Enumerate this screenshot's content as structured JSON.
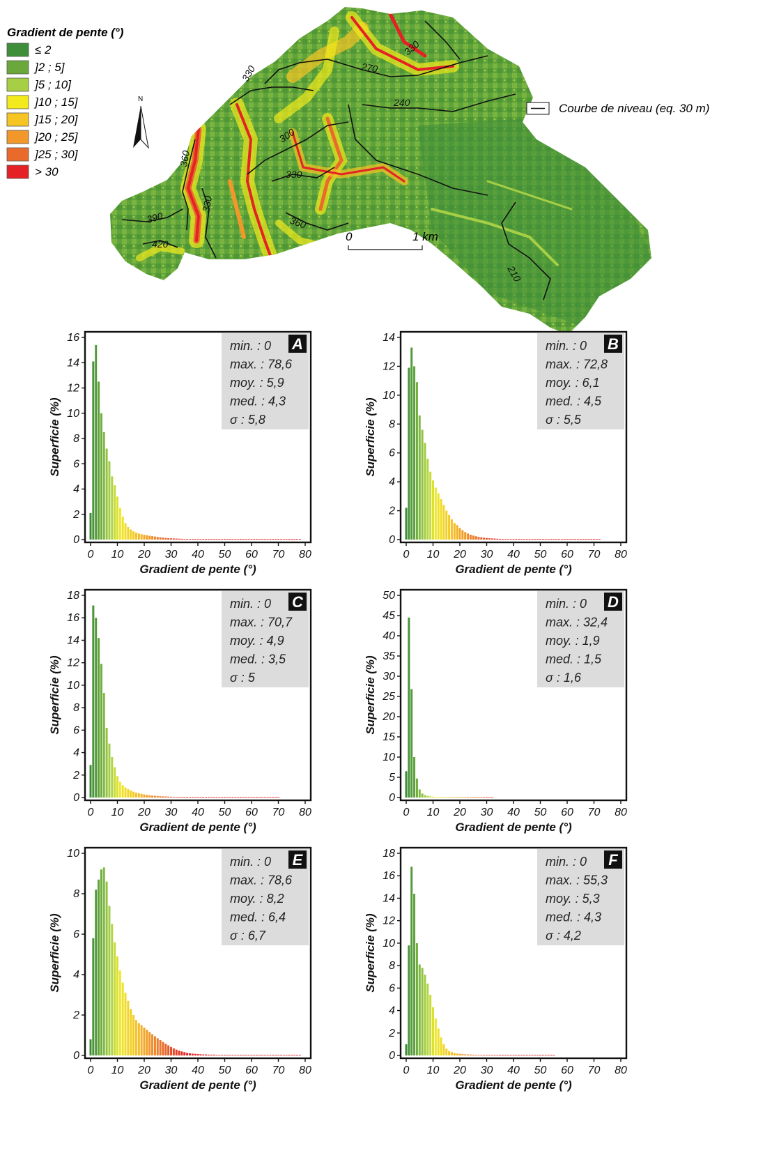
{
  "map": {
    "legend_title": "Gradient de pente (°)",
    "legend_items": [
      {
        "label": "≤ 2",
        "color": "#3f8f3a"
      },
      {
        "label": "]2 ; 5]",
        "color": "#6aa83c"
      },
      {
        "label": "]5 ; 10]",
        "color": "#a7cf45"
      },
      {
        "label": "]10 ; 15]",
        "color": "#f2ea1c"
      },
      {
        "label": "]15 ; 20]",
        "color": "#f6c423"
      },
      {
        "label": "]20 ; 25]",
        "color": "#f2982a"
      },
      {
        "label": "]25 ; 30]",
        "color": "#ea6a2b"
      },
      {
        "label": "> 30",
        "color": "#e42226"
      }
    ],
    "contour_legend": "Courbe de niveau (eq. 30 m)",
    "north_label": "N",
    "scale": {
      "start": "0",
      "end": "1 km"
    },
    "contour_labels": [
      "330",
      "330",
      "270",
      "240",
      "300",
      "360",
      "330",
      "330",
      "390",
      "360",
      "420",
      "210"
    ]
  },
  "chart_data": [
    {
      "type": "bar",
      "id": "A",
      "stats": [
        "min. : 0",
        "max. : 78,6",
        "moy. : 5,9",
        "med. : 4,3",
        "σ : 5,8"
      ],
      "xlabel": "Gradient de pente (°)",
      "ylabel": "Superficie (%)",
      "xlim": [
        0,
        80
      ],
      "ylim": [
        0,
        16
      ],
      "xticks": [
        "0",
        "10",
        "20",
        "30",
        "40",
        "50",
        "60",
        "70",
        "80"
      ],
      "yticks": [
        "0",
        "2",
        "4",
        "6",
        "8",
        "10",
        "12",
        "14",
        "16"
      ],
      "x": [
        0,
        1,
        2,
        3,
        4,
        5,
        6,
        7,
        8,
        9,
        10,
        11,
        12,
        13,
        14,
        15,
        16,
        17,
        18,
        19,
        20,
        21,
        22,
        23,
        24,
        25,
        26,
        27,
        28,
        29,
        30,
        31,
        32,
        33,
        34,
        35,
        36,
        37,
        38,
        39,
        40,
        41,
        42,
        43,
        44,
        45,
        46,
        47,
        48,
        49,
        50,
        51,
        52,
        53,
        54,
        55,
        56,
        57,
        58,
        59,
        60,
        61,
        62,
        63,
        64,
        65,
        66,
        67,
        68,
        69,
        70,
        71,
        72,
        73,
        74,
        75,
        76,
        77,
        78
      ],
      "values": [
        2.1,
        14.1,
        15.4,
        12.5,
        10.0,
        8.5,
        7.2,
        6.2,
        5.0,
        4.3,
        3.4,
        2.5,
        1.8,
        1.3,
        1.0,
        0.8,
        0.65,
        0.55,
        0.48,
        0.42,
        0.38,
        0.34,
        0.3,
        0.27,
        0.24,
        0.21,
        0.18,
        0.15,
        0.13,
        0.11,
        0.1,
        0.09,
        0.08,
        0.07,
        0.06,
        0.05,
        0.05,
        0.04,
        0.04,
        0.03,
        0.03,
        0.03,
        0.02,
        0.02,
        0.02,
        0.02,
        0.02,
        0.01,
        0.01,
        0.01,
        0.01,
        0.01,
        0.01,
        0.01,
        0.01,
        0.01,
        0.01,
        0.01,
        0.01,
        0.01,
        0.01,
        0.01,
        0.01,
        0.01,
        0.01,
        0.01,
        0.01,
        0.01,
        0.01,
        0.01,
        0.01,
        0.01,
        0.01,
        0.01,
        0.01,
        0.01,
        0.01,
        0.01,
        0.01
      ]
    },
    {
      "type": "bar",
      "id": "B",
      "stats": [
        "min. : 0",
        "max. : 72,8",
        "moy. : 6,1",
        "med. : 4,5",
        "σ : 5,5"
      ],
      "xlabel": "Gradient de pente (°)",
      "ylabel": "Superficie (%)",
      "xlim": [
        0,
        80
      ],
      "ylim": [
        0,
        14
      ],
      "xticks": [
        "0",
        "10",
        "20",
        "30",
        "40",
        "50",
        "60",
        "70",
        "80"
      ],
      "yticks": [
        "0",
        "2",
        "4",
        "6",
        "8",
        "10",
        "12",
        "14"
      ],
      "x": [
        0,
        1,
        2,
        3,
        4,
        5,
        6,
        7,
        8,
        9,
        10,
        11,
        12,
        13,
        14,
        15,
        16,
        17,
        18,
        19,
        20,
        21,
        22,
        23,
        24,
        25,
        26,
        27,
        28,
        29,
        30,
        31,
        32,
        33,
        34,
        35,
        36,
        37,
        38,
        39,
        40,
        41,
        42,
        43,
        44,
        45,
        46,
        47,
        48,
        49,
        50,
        51,
        52,
        53,
        54,
        55,
        56,
        57,
        58,
        59,
        60,
        61,
        62,
        63,
        64,
        65,
        66,
        67,
        68,
        69,
        70,
        71,
        72
      ],
      "values": [
        2.2,
        11.9,
        13.3,
        12.0,
        10.9,
        8.6,
        7.6,
        6.7,
        5.6,
        4.7,
        4.1,
        3.6,
        3.2,
        2.8,
        2.4,
        2.0,
        1.7,
        1.4,
        1.15,
        1.0,
        0.8,
        0.65,
        0.52,
        0.42,
        0.34,
        0.28,
        0.23,
        0.19,
        0.16,
        0.13,
        0.11,
        0.09,
        0.08,
        0.07,
        0.06,
        0.05,
        0.04,
        0.04,
        0.03,
        0.03,
        0.03,
        0.02,
        0.02,
        0.02,
        0.02,
        0.02,
        0.02,
        0.01,
        0.01,
        0.01,
        0.01,
        0.01,
        0.01,
        0.01,
        0.01,
        0.01,
        0.01,
        0.01,
        0.01,
        0.01,
        0.01,
        0.01,
        0.01,
        0.01,
        0.01,
        0.01,
        0.01,
        0.01,
        0.01,
        0.01,
        0.01,
        0.01,
        0.01
      ]
    },
    {
      "type": "bar",
      "id": "C",
      "stats": [
        "min. : 0",
        "max. : 70,7",
        "moy. : 4,9",
        "med. : 3,5",
        "σ : 5"
      ],
      "xlabel": "Gradient de pente (°)",
      "ylabel": "Superficie (%)",
      "xlim": [
        0,
        80
      ],
      "ylim": [
        0,
        18
      ],
      "xticks": [
        "0",
        "10",
        "20",
        "30",
        "40",
        "50",
        "60",
        "70",
        "80"
      ],
      "yticks": [
        "0",
        "2",
        "4",
        "6",
        "8",
        "10",
        "12",
        "14",
        "16",
        "18"
      ],
      "x": [
        0,
        1,
        2,
        3,
        4,
        5,
        6,
        7,
        8,
        9,
        10,
        11,
        12,
        13,
        14,
        15,
        16,
        17,
        18,
        19,
        20,
        21,
        22,
        23,
        24,
        25,
        26,
        27,
        28,
        29,
        30,
        31,
        32,
        33,
        34,
        35,
        36,
        37,
        38,
        39,
        40,
        41,
        42,
        43,
        44,
        45,
        46,
        47,
        48,
        49,
        50,
        51,
        52,
        53,
        54,
        55,
        56,
        57,
        58,
        59,
        60,
        61,
        62,
        63,
        64,
        65,
        66,
        67,
        68,
        69,
        70
      ],
      "values": [
        2.9,
        17.1,
        16.0,
        14.2,
        11.9,
        9.3,
        6.2,
        4.8,
        3.6,
        2.7,
        1.9,
        1.4,
        1.1,
        0.9,
        0.75,
        0.62,
        0.52,
        0.44,
        0.38,
        0.32,
        0.27,
        0.23,
        0.2,
        0.17,
        0.15,
        0.13,
        0.11,
        0.1,
        0.09,
        0.08,
        0.07,
        0.06,
        0.05,
        0.05,
        0.04,
        0.04,
        0.03,
        0.03,
        0.03,
        0.02,
        0.02,
        0.02,
        0.02,
        0.02,
        0.01,
        0.01,
        0.01,
        0.01,
        0.01,
        0.01,
        0.01,
        0.01,
        0.01,
        0.01,
        0.01,
        0.01,
        0.01,
        0.01,
        0.01,
        0.01,
        0.01,
        0.01,
        0.01,
        0.01,
        0.01,
        0.01,
        0.01,
        0.01,
        0.01,
        0.01,
        0.01
      ]
    },
    {
      "type": "bar",
      "id": "D",
      "stats": [
        "min. : 0",
        "max. : 32,4",
        "moy. : 1,9",
        "med. : 1,5",
        "σ : 1,6"
      ],
      "xlabel": "Gradient de pente (°)",
      "ylabel": "Superficie (%)",
      "xlim": [
        0,
        80
      ],
      "ylim": [
        0,
        50
      ],
      "xticks": [
        "0",
        "10",
        "20",
        "30",
        "40",
        "50",
        "60",
        "70",
        "80"
      ],
      "yticks": [
        "0",
        "5",
        "10",
        "15",
        "20",
        "25",
        "30",
        "35",
        "40",
        "45",
        "50"
      ],
      "x": [
        0,
        1,
        2,
        3,
        4,
        5,
        6,
        7,
        8,
        9,
        10,
        11,
        12,
        13,
        14,
        15,
        16,
        17,
        18,
        19,
        20,
        21,
        22,
        23,
        24,
        25,
        26,
        27,
        28,
        29,
        30,
        31,
        32
      ],
      "values": [
        6.5,
        44.5,
        26.8,
        10.0,
        4.7,
        2.0,
        1.0,
        0.6,
        0.4,
        0.3,
        0.22,
        0.17,
        0.13,
        0.1,
        0.08,
        0.07,
        0.06,
        0.05,
        0.04,
        0.04,
        0.03,
        0.03,
        0.03,
        0.02,
        0.02,
        0.02,
        0.02,
        0.02,
        0.02,
        0.02,
        0.02,
        0.02,
        0.02
      ]
    },
    {
      "type": "bar",
      "id": "E",
      "stats": [
        "min. : 0",
        "max. : 78,6",
        "moy. : 8,2",
        "med. : 6,4",
        "σ : 6,7"
      ],
      "xlabel": "Gradient de pente (°)",
      "ylabel": "Superficie (%)",
      "xlim": [
        0,
        80
      ],
      "ylim": [
        0,
        10
      ],
      "xticks": [
        "0",
        "10",
        "20",
        "30",
        "40",
        "50",
        "60",
        "70",
        "80"
      ],
      "yticks": [
        "0",
        "2",
        "4",
        "6",
        "8",
        "10"
      ],
      "x": [
        0,
        1,
        2,
        3,
        4,
        5,
        6,
        7,
        8,
        9,
        10,
        11,
        12,
        13,
        14,
        15,
        16,
        17,
        18,
        19,
        20,
        21,
        22,
        23,
        24,
        25,
        26,
        27,
        28,
        29,
        30,
        31,
        32,
        33,
        34,
        35,
        36,
        37,
        38,
        39,
        40,
        41,
        42,
        43,
        44,
        45,
        46,
        47,
        48,
        49,
        50,
        51,
        52,
        53,
        54,
        55,
        56,
        57,
        58,
        59,
        60,
        61,
        62,
        63,
        64,
        65,
        66,
        67,
        68,
        69,
        70,
        71,
        72,
        73,
        74,
        75,
        76,
        77,
        78
      ],
      "values": [
        0.8,
        5.8,
        8.2,
        8.7,
        9.2,
        9.3,
        8.6,
        7.4,
        6.5,
        5.6,
        4.9,
        4.2,
        3.6,
        3.1,
        2.7,
        2.3,
        2.0,
        1.75,
        1.6,
        1.5,
        1.38,
        1.27,
        1.16,
        1.05,
        0.95,
        0.85,
        0.76,
        0.67,
        0.58,
        0.5,
        0.42,
        0.35,
        0.29,
        0.24,
        0.2,
        0.16,
        0.13,
        0.11,
        0.09,
        0.08,
        0.07,
        0.06,
        0.05,
        0.05,
        0.04,
        0.04,
        0.04,
        0.03,
        0.03,
        0.03,
        0.03,
        0.03,
        0.02,
        0.02,
        0.02,
        0.02,
        0.02,
        0.02,
        0.02,
        0.02,
        0.02,
        0.02,
        0.02,
        0.02,
        0.02,
        0.02,
        0.02,
        0.02,
        0.02,
        0.02,
        0.02,
        0.02,
        0.02,
        0.02,
        0.02,
        0.02,
        0.02,
        0.02,
        0.02
      ]
    },
    {
      "type": "bar",
      "id": "F",
      "stats": [
        "min. : 0",
        "max. : 55,3",
        "moy. : 5,3",
        "med. : 4,3",
        "σ : 4,2"
      ],
      "xlabel": "Gradient de pente (°)",
      "ylabel": "Superficie (%)",
      "xlim": [
        0,
        80
      ],
      "ylim": [
        0,
        18
      ],
      "xticks": [
        "0",
        "10",
        "20",
        "30",
        "40",
        "50",
        "60",
        "70",
        "80"
      ],
      "yticks": [
        "0",
        "2",
        "4",
        "6",
        "8",
        "10",
        "12",
        "14",
        "16",
        "18"
      ],
      "x": [
        0,
        1,
        2,
        3,
        4,
        5,
        6,
        7,
        8,
        9,
        10,
        11,
        12,
        13,
        14,
        15,
        16,
        17,
        18,
        19,
        20,
        21,
        22,
        23,
        24,
        25,
        26,
        27,
        28,
        29,
        30,
        31,
        32,
        33,
        34,
        35,
        36,
        37,
        38,
        39,
        40,
        41,
        42,
        43,
        44,
        45,
        46,
        47,
        48,
        49,
        50,
        51,
        52,
        53,
        54,
        55
      ],
      "values": [
        1.0,
        9.8,
        16.8,
        14.4,
        10.0,
        8.1,
        7.8,
        7.2,
        6.4,
        5.4,
        4.3,
        3.3,
        2.4,
        1.6,
        1.0,
        0.6,
        0.4,
        0.3,
        0.22,
        0.17,
        0.14,
        0.12,
        0.1,
        0.09,
        0.08,
        0.07,
        0.06,
        0.05,
        0.05,
        0.04,
        0.04,
        0.03,
        0.03,
        0.03,
        0.02,
        0.02,
        0.02,
        0.02,
        0.02,
        0.02,
        0.02,
        0.01,
        0.01,
        0.01,
        0.01,
        0.01,
        0.01,
        0.01,
        0.01,
        0.01,
        0.01,
        0.01,
        0.01,
        0.01,
        0.01,
        0.01
      ]
    }
  ]
}
